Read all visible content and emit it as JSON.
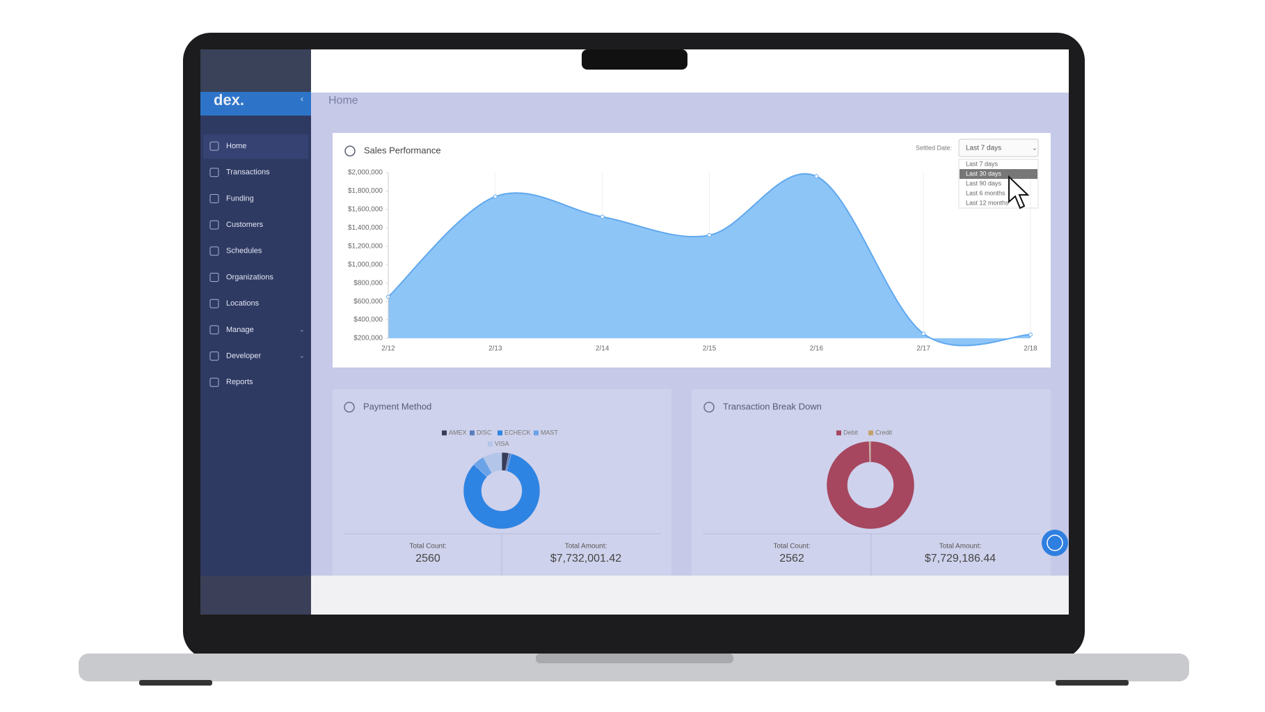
{
  "app": {
    "logo": "dex.",
    "page_title": "Home",
    "nav": [
      "Home",
      "Transactions",
      "Funding",
      "Customers",
      "Schedules",
      "Organizations",
      "Locations",
      "Manage",
      "Developer",
      "Reports"
    ]
  },
  "dropdown": {
    "label": "Settled Date:",
    "selected": "Last 7 days",
    "options": [
      "Last 7 days",
      "Last 30 days",
      "Last 90 days",
      "Last 6 months",
      "Last 12 months"
    ]
  },
  "chart_data": [
    {
      "type": "area",
      "title": "Sales Performance",
      "categories": [
        "2/12",
        "2/13",
        "2/14",
        "2/15",
        "2/16",
        "2/17",
        "2/18"
      ],
      "values": [
        650000,
        1740000,
        1520000,
        1320000,
        1960000,
        250000,
        240000
      ],
      "color": "#8ec5f7",
      "ylim": [
        200000,
        2000000
      ],
      "yticks": [
        {
          "value": 200000,
          "label": "$200,000"
        },
        {
          "value": 400000,
          "label": "$400,000"
        },
        {
          "value": 600000,
          "label": "$600,000"
        },
        {
          "value": 800000,
          "label": "$800,000"
        },
        {
          "value": 1000000,
          "label": "$1,000,000"
        },
        {
          "value": 1200000,
          "label": "$1,200,000"
        },
        {
          "value": 1400000,
          "label": "$1,400,000"
        },
        {
          "value": 1600000,
          "label": "$1,600,000"
        },
        {
          "value": 1800000,
          "label": "$1,800,000"
        },
        {
          "value": 2000000,
          "label": "$2,000,000"
        }
      ],
      "grid": true
    },
    {
      "type": "donut",
      "title": "Payment Method",
      "categories": [
        "AMEX",
        "DISC",
        "ECHECK",
        "MAST",
        "VISA"
      ],
      "values": [
        3,
        1,
        83,
        5,
        8
      ],
      "colors": [
        "#373c58",
        "#5a7cbc",
        "#2e84e2",
        "#6aa3e8",
        "#b3c6ea"
      ]
    },
    {
      "type": "donut",
      "title": "Transaction Break Down",
      "categories": [
        "Debit",
        "Credit"
      ],
      "values": [
        99.5,
        0.5
      ],
      "colors": [
        "#a6465f",
        "#c4a36a"
      ]
    }
  ],
  "totals": [
    {
      "count_label": "Total Count:",
      "count": 2560,
      "amount_label": "Total Amount:",
      "amount": "$7,732,001.42"
    },
    {
      "count_label": "Total Count:",
      "count": 2562,
      "amount_label": "Total Amount:",
      "amount": "$7,729,186.44"
    }
  ]
}
